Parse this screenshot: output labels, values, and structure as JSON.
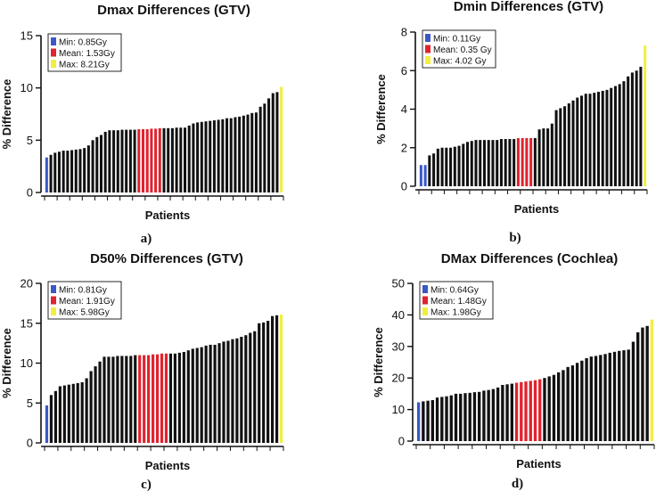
{
  "colors": {
    "normal": "#111111",
    "min": "#3a58c8",
    "mean": "#e0232e",
    "max": "#f2ee3e"
  },
  "chart_data": [
    {
      "type": "bar",
      "title": "Dmax Differences (GTV)",
      "xlabel": "Patients",
      "ylabel": "% Difference",
      "ylim": [
        0,
        15
      ],
      "yticks": [
        "0",
        "5",
        "10",
        "15"
      ],
      "caption": "a)",
      "legend": {
        "min": "Min: 0.85Gy",
        "mean": "Mean: 1.53Gy",
        "max": "Max: 8.21Gy"
      },
      "legend_position": "top-left",
      "values": [
        3.35,
        3.6,
        3.8,
        3.9,
        4.0,
        4.0,
        4.05,
        4.1,
        4.15,
        4.25,
        4.5,
        5.0,
        5.3,
        5.5,
        5.8,
        5.95,
        5.95,
        5.95,
        6.0,
        6.0,
        6.0,
        6.0,
        6.05,
        6.05,
        6.05,
        6.1,
        6.1,
        6.15,
        6.15,
        6.15,
        6.15,
        6.2,
        6.2,
        6.2,
        6.4,
        6.6,
        6.7,
        6.75,
        6.8,
        6.85,
        6.9,
        6.95,
        7.0,
        7.1,
        7.1,
        7.2,
        7.25,
        7.35,
        7.45,
        7.6,
        7.65,
        8.2,
        8.5,
        9.0,
        9.5,
        9.6,
        10.1
      ],
      "min_indices": [
        0
      ],
      "mean_indices": [
        22,
        23,
        24,
        25,
        26,
        27
      ],
      "max_indices": [
        56
      ]
    },
    {
      "type": "bar",
      "title": "Dmin Differences (GTV)",
      "xlabel": "Patients",
      "ylabel": "% Difference",
      "ylim": [
        0,
        8
      ],
      "yticks": [
        "0",
        "2",
        "4",
        "6",
        "8"
      ],
      "caption": "b)",
      "legend": {
        "min": "Min: 0.11Gy",
        "mean": "Mean: 0.35 Gy",
        "max": "Max: 4.02 Gy"
      },
      "legend_position": "top-left",
      "values": [
        1.1,
        1.1,
        1.6,
        1.7,
        1.95,
        2.0,
        2.0,
        2.0,
        2.05,
        2.1,
        2.2,
        2.3,
        2.35,
        2.4,
        2.4,
        2.4,
        2.4,
        2.4,
        2.4,
        2.45,
        2.45,
        2.45,
        2.45,
        2.5,
        2.5,
        2.5,
        2.5,
        2.5,
        2.95,
        3.0,
        3.0,
        3.25,
        3.95,
        4.05,
        4.15,
        4.3,
        4.45,
        4.6,
        4.7,
        4.8,
        4.8,
        4.85,
        4.9,
        4.95,
        5.0,
        5.1,
        5.2,
        5.3,
        5.45,
        5.7,
        5.9,
        6.0,
        6.2,
        7.3
      ],
      "min_indices": [
        0,
        1
      ],
      "mean_indices": [
        23,
        24,
        25,
        26
      ],
      "max_indices": [
        53
      ]
    },
    {
      "type": "bar",
      "title": "D50% Differences (GTV)",
      "xlabel": "Patients",
      "ylabel": "% Difference",
      "ylim": [
        0,
        20
      ],
      "yticks": [
        "0",
        "5",
        "10",
        "15",
        "20"
      ],
      "caption": "c)",
      "legend": {
        "min": "Min: 0.81Gy",
        "mean": "Mean: 1.91Gy",
        "max": "Max: 5.98Gy"
      },
      "legend_position": "top-left",
      "values": [
        4.7,
        6.0,
        6.5,
        7.1,
        7.2,
        7.3,
        7.4,
        7.5,
        7.6,
        8.1,
        9.0,
        9.6,
        10.2,
        10.8,
        10.8,
        10.8,
        10.9,
        10.9,
        10.9,
        10.9,
        11.0,
        11.0,
        11.0,
        11.0,
        11.1,
        11.1,
        11.2,
        11.2,
        11.2,
        11.2,
        11.3,
        11.4,
        11.6,
        11.8,
        11.9,
        12.0,
        12.2,
        12.3,
        12.3,
        12.5,
        12.7,
        12.8,
        13.0,
        13.1,
        13.3,
        13.5,
        13.8,
        14.0,
        15.0,
        15.1,
        15.3,
        15.9,
        16.0,
        16.1
      ],
      "min_indices": [
        0
      ],
      "mean_indices": [
        21,
        22,
        23,
        24,
        25,
        26,
        27
      ],
      "max_indices": [
        53
      ]
    },
    {
      "type": "bar",
      "title": "DMax Differences (Cochlea)",
      "xlabel": "Patients",
      "ylabel": "% Difference",
      "ylim": [
        0,
        50
      ],
      "yticks": [
        "0",
        "10",
        "20",
        "30",
        "40",
        "50"
      ],
      "caption": "d)",
      "legend": {
        "min": "Min: 0.64Gy",
        "mean": "Mean: 1.48Gy",
        "max": "Max: 1.98Gy"
      },
      "legend_position": "top-left",
      "values": [
        12.3,
        12.6,
        12.8,
        13.0,
        13.8,
        14.0,
        14.2,
        14.5,
        15.0,
        15.0,
        15.2,
        15.3,
        15.5,
        15.6,
        16.0,
        16.2,
        16.5,
        17.0,
        17.8,
        18.0,
        18.2,
        18.5,
        18.7,
        18.9,
        19.1,
        19.3,
        19.6,
        20.0,
        20.5,
        21.0,
        21.8,
        22.5,
        23.5,
        24.0,
        24.8,
        25.5,
        26.3,
        26.8,
        27.0,
        27.3,
        27.6,
        28.0,
        28.3,
        28.6,
        28.8,
        29.0,
        31.5,
        34.5,
        36.0,
        36.5,
        38.5
      ],
      "min_indices": [
        0
      ],
      "mean_indices": [
        21,
        22,
        23,
        24,
        25,
        26
      ],
      "max_indices": [
        50
      ]
    }
  ]
}
